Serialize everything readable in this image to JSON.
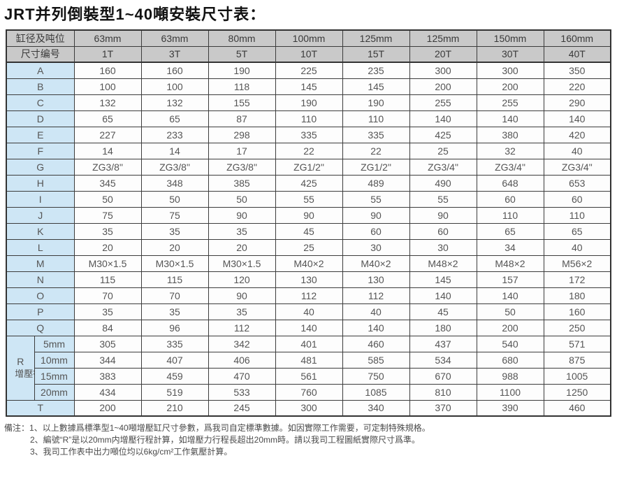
{
  "title": "JRT并列倒裝型1~40噸安裝尺寸表：",
  "colors": {
    "header_bg": "#c9c9c9",
    "label_bg": "#cee6f5",
    "cell_white_bg": "#fdfdfd",
    "border": "#3c3c3c"
  },
  "table": {
    "header_row_1": {
      "label": "缸径及吨位",
      "values": [
        "63mm",
        "63mm",
        "80mm",
        "100mm",
        "125mm",
        "125mm",
        "150mm",
        "160mm"
      ]
    },
    "header_row_2": {
      "label": "尺寸编号",
      "values": [
        "1T",
        "3T",
        "5T",
        "10T",
        "15T",
        "20T",
        "30T",
        "40T"
      ]
    },
    "rows": [
      {
        "label": "A",
        "values": [
          "160",
          "160",
          "190",
          "225",
          "235",
          "300",
          "300",
          "350"
        ]
      },
      {
        "label": "B",
        "values": [
          "100",
          "100",
          "118",
          "145",
          "145",
          "200",
          "200",
          "220"
        ]
      },
      {
        "label": "C",
        "values": [
          "132",
          "132",
          "155",
          "190",
          "190",
          "255",
          "255",
          "290"
        ]
      },
      {
        "label": "D",
        "values": [
          "65",
          "65",
          "87",
          "110",
          "110",
          "140",
          "140",
          "140"
        ]
      },
      {
        "label": "E",
        "values": [
          "227",
          "233",
          "298",
          "335",
          "335",
          "425",
          "380",
          "420"
        ]
      },
      {
        "label": "F",
        "values": [
          "14",
          "14",
          "17",
          "22",
          "22",
          "25",
          "32",
          "40"
        ]
      },
      {
        "label": "G",
        "values": [
          "ZG3/8\"",
          "ZG3/8\"",
          "ZG3/8\"",
          "ZG1/2\"",
          "ZG1/2\"",
          "ZG3/4\"",
          "ZG3/4\"",
          "ZG3/4\""
        ]
      },
      {
        "label": "H",
        "values": [
          "345",
          "348",
          "385",
          "425",
          "489",
          "490",
          "648",
          "653"
        ]
      },
      {
        "label": "I",
        "values": [
          "50",
          "50",
          "50",
          "55",
          "55",
          "55",
          "60",
          "60"
        ]
      },
      {
        "label": "J",
        "values": [
          "75",
          "75",
          "90",
          "90",
          "90",
          "90",
          "110",
          "110"
        ]
      },
      {
        "label": "K",
        "values": [
          "35",
          "35",
          "35",
          "45",
          "60",
          "60",
          "65",
          "65"
        ]
      },
      {
        "label": "L",
        "values": [
          "20",
          "20",
          "20",
          "25",
          "30",
          "30",
          "34",
          "40"
        ]
      },
      {
        "label": "M",
        "values": [
          "M30×1.5",
          "M30×1.5",
          "M30×1.5",
          "M40×2",
          "M40×2",
          "M48×2",
          "M48×2",
          "M56×2"
        ]
      },
      {
        "label": "N",
        "values": [
          "115",
          "115",
          "120",
          "130",
          "130",
          "145",
          "157",
          "172"
        ]
      },
      {
        "label": "O",
        "values": [
          "70",
          "70",
          "90",
          "112",
          "112",
          "140",
          "140",
          "180"
        ]
      },
      {
        "label": "P",
        "values": [
          "35",
          "35",
          "35",
          "40",
          "40",
          "45",
          "50",
          "160"
        ]
      },
      {
        "label": "Q",
        "values": [
          "84",
          "96",
          "112",
          "140",
          "140",
          "180",
          "200",
          "250"
        ]
      }
    ],
    "r_section": {
      "code": "R",
      "label": "增壓行程",
      "rows": [
        {
          "stroke": "5mm",
          "values": [
            "305",
            "335",
            "342",
            "401",
            "460",
            "437",
            "540",
            "571"
          ]
        },
        {
          "stroke": "10mm",
          "values": [
            "344",
            "407",
            "406",
            "481",
            "585",
            "534",
            "680",
            "875"
          ]
        },
        {
          "stroke": "15mm",
          "values": [
            "383",
            "459",
            "470",
            "561",
            "750",
            "670",
            "988",
            "1005"
          ]
        },
        {
          "stroke": "20mm",
          "values": [
            "434",
            "519",
            "533",
            "760",
            "1085",
            "810",
            "1100",
            "1250"
          ]
        }
      ]
    },
    "t_row": {
      "label": "T",
      "values": [
        "200",
        "210",
        "245",
        "300",
        "340",
        "370",
        "390",
        "460"
      ]
    }
  },
  "notes": {
    "prefix": "備注：",
    "items": [
      "1、以上數據爲標準型1~40噸增壓缸尺寸參數，爲我司自定標準數據。如因實際工作需要，可定制特殊規格。",
      "2、編號“R”是以20mm内增壓行程計算，如增壓力行程長超出20mm時。請以我司工程圖紙實際尺寸爲準。",
      "3、我司工作表中出力噸位均以6kg/cm²工作氣壓計算。"
    ]
  }
}
